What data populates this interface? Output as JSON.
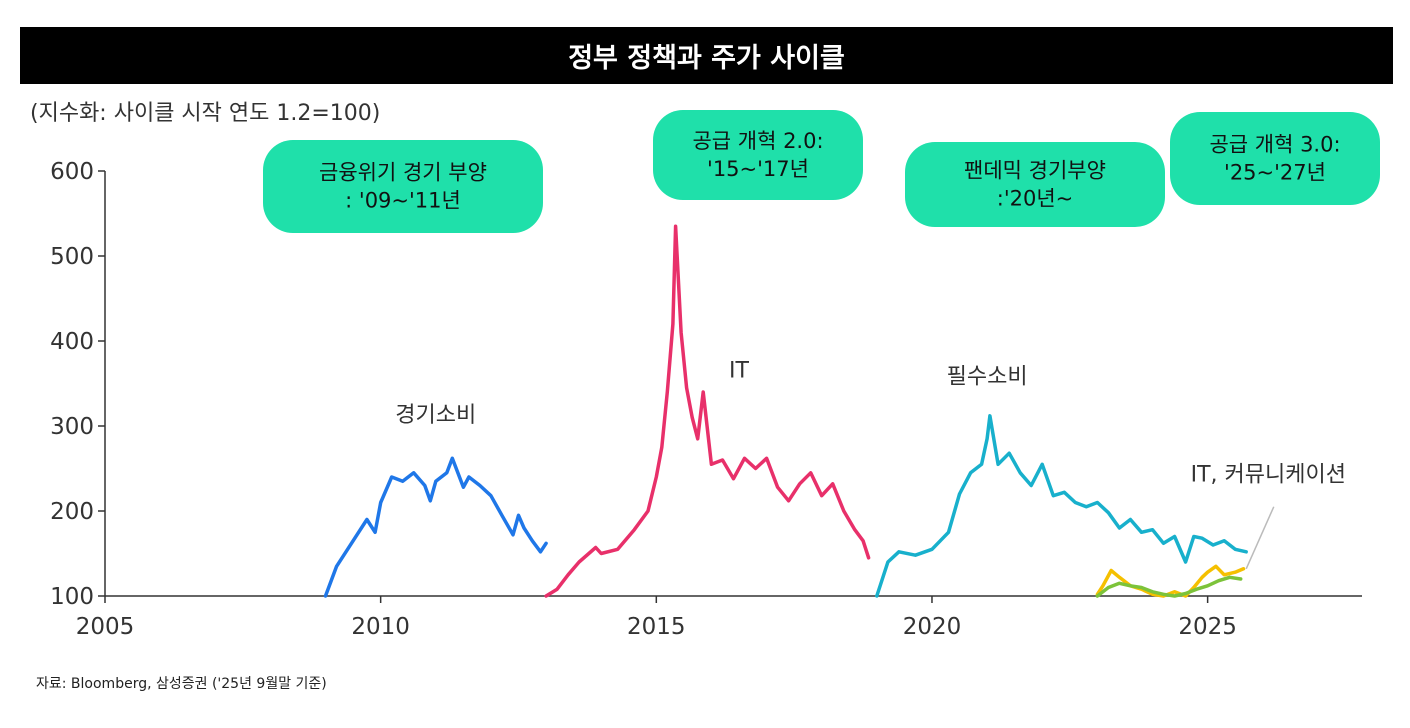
{
  "page": {
    "title": "정부 정책과 주가 사이클",
    "unit_note": "(지수화: 사이클 시작 연도 1.2=100)",
    "source_note": "자료: Bloomberg, 삼성증권 ('25년 9월말 기준)"
  },
  "colors": {
    "title_bg": "#000000",
    "box_fill": "#1fe0aa",
    "consumer_discretionary": "#1f77e8",
    "it_2015": "#e8306a",
    "staples": "#18b0cc",
    "it_2025": "#f5c000",
    "communication_2025": "#7cc33a",
    "axis": "#333333"
  },
  "annotations": [
    {
      "id": "gfc",
      "lines": [
        "금융위기 경기 부양",
        ": '09~'11년"
      ]
    },
    {
      "id": "supply2",
      "lines": [
        "공급 개혁 2.0:",
        "'15~'17년"
      ]
    },
    {
      "id": "pandemic",
      "lines": [
        "팬데믹 경기부양",
        ":'20년~"
      ]
    },
    {
      "id": "supply3",
      "lines": [
        "공급 개혁 3.0:",
        "'25~'27년"
      ]
    }
  ],
  "chart_data": {
    "type": "line",
    "title": "정부 정책과 주가 사이클",
    "xlabel": "",
    "ylabel": "",
    "xlim": [
      2005,
      2027.8
    ],
    "ylim": [
      100,
      600
    ],
    "x_ticks": [
      2005,
      2010,
      2015,
      2020,
      2025
    ],
    "y_ticks": [
      100,
      200,
      300,
      400,
      500,
      600
    ],
    "series": [
      {
        "name": "경기소비",
        "color_key": "consumer_discretionary",
        "points": [
          [
            2009.0,
            100
          ],
          [
            2009.2,
            135
          ],
          [
            2009.5,
            165
          ],
          [
            2009.75,
            190
          ],
          [
            2009.9,
            175
          ],
          [
            2010.0,
            210
          ],
          [
            2010.2,
            240
          ],
          [
            2010.4,
            235
          ],
          [
            2010.6,
            245
          ],
          [
            2010.8,
            230
          ],
          [
            2010.9,
            212
          ],
          [
            2011.0,
            235
          ],
          [
            2011.2,
            245
          ],
          [
            2011.3,
            262
          ],
          [
            2011.5,
            228
          ],
          [
            2011.6,
            240
          ],
          [
            2011.8,
            230
          ],
          [
            2012.0,
            218
          ],
          [
            2012.2,
            195
          ],
          [
            2012.4,
            172
          ],
          [
            2012.5,
            195
          ],
          [
            2012.6,
            180
          ],
          [
            2012.75,
            165
          ],
          [
            2012.9,
            152
          ],
          [
            2013.0,
            162
          ]
        ]
      },
      {
        "name": "IT",
        "color_key": "it_2015",
        "points": [
          [
            2013.0,
            100
          ],
          [
            2013.2,
            108
          ],
          [
            2013.4,
            125
          ],
          [
            2013.6,
            140
          ],
          [
            2013.9,
            157
          ],
          [
            2014.0,
            150
          ],
          [
            2014.3,
            155
          ],
          [
            2014.6,
            178
          ],
          [
            2014.85,
            200
          ],
          [
            2015.0,
            240
          ],
          [
            2015.1,
            275
          ],
          [
            2015.2,
            340
          ],
          [
            2015.3,
            420
          ],
          [
            2015.35,
            535
          ],
          [
            2015.45,
            410
          ],
          [
            2015.55,
            345
          ],
          [
            2015.65,
            310
          ],
          [
            2015.75,
            285
          ],
          [
            2015.85,
            340
          ],
          [
            2016.0,
            255
          ],
          [
            2016.2,
            260
          ],
          [
            2016.4,
            238
          ],
          [
            2016.6,
            262
          ],
          [
            2016.8,
            250
          ],
          [
            2017.0,
            262
          ],
          [
            2017.2,
            228
          ],
          [
            2017.4,
            212
          ],
          [
            2017.6,
            232
          ],
          [
            2017.8,
            245
          ],
          [
            2018.0,
            218
          ],
          [
            2018.2,
            232
          ],
          [
            2018.4,
            200
          ],
          [
            2018.6,
            178
          ],
          [
            2018.75,
            165
          ],
          [
            2018.85,
            145
          ]
        ]
      },
      {
        "name": "필수소비",
        "color_key": "staples",
        "points": [
          [
            2019.0,
            100
          ],
          [
            2019.2,
            140
          ],
          [
            2019.4,
            152
          ],
          [
            2019.7,
            148
          ],
          [
            2020.0,
            155
          ],
          [
            2020.3,
            175
          ],
          [
            2020.5,
            220
          ],
          [
            2020.7,
            245
          ],
          [
            2020.9,
            255
          ],
          [
            2021.0,
            285
          ],
          [
            2021.05,
            312
          ],
          [
            2021.2,
            255
          ],
          [
            2021.4,
            268
          ],
          [
            2021.6,
            245
          ],
          [
            2021.8,
            230
          ],
          [
            2022.0,
            255
          ],
          [
            2022.2,
            218
          ],
          [
            2022.4,
            222
          ],
          [
            2022.6,
            210
          ],
          [
            2022.8,
            205
          ],
          [
            2023.0,
            210
          ],
          [
            2023.2,
            198
          ],
          [
            2023.4,
            180
          ],
          [
            2023.6,
            190
          ],
          [
            2023.8,
            175
          ],
          [
            2024.0,
            178
          ],
          [
            2024.2,
            162
          ],
          [
            2024.4,
            170
          ],
          [
            2024.6,
            140
          ],
          [
            2024.75,
            170
          ],
          [
            2024.9,
            168
          ],
          [
            2025.1,
            160
          ],
          [
            2025.3,
            165
          ],
          [
            2025.5,
            155
          ],
          [
            2025.7,
            152
          ]
        ]
      },
      {
        "name": "IT",
        "color_key": "it_2025",
        "points": [
          [
            2023.0,
            102
          ],
          [
            2023.1,
            112
          ],
          [
            2023.25,
            130
          ],
          [
            2023.4,
            122
          ],
          [
            2023.6,
            112
          ],
          [
            2023.8,
            108
          ],
          [
            2024.0,
            102
          ],
          [
            2024.2,
            100
          ],
          [
            2024.4,
            105
          ],
          [
            2024.6,
            100
          ],
          [
            2024.75,
            110
          ],
          [
            2024.9,
            122
          ],
          [
            2025.0,
            128
          ],
          [
            2025.15,
            135
          ],
          [
            2025.3,
            125
          ],
          [
            2025.5,
            128
          ],
          [
            2025.65,
            132
          ]
        ]
      },
      {
        "name": "커뮤니케이션",
        "color_key": "communication_2025",
        "points": [
          [
            2023.0,
            100
          ],
          [
            2023.2,
            110
          ],
          [
            2023.4,
            115
          ],
          [
            2023.6,
            112
          ],
          [
            2023.8,
            110
          ],
          [
            2024.0,
            105
          ],
          [
            2024.2,
            102
          ],
          [
            2024.4,
            100
          ],
          [
            2024.6,
            103
          ],
          [
            2024.8,
            108
          ],
          [
            2025.0,
            112
          ],
          [
            2025.2,
            118
          ],
          [
            2025.4,
            122
          ],
          [
            2025.6,
            120
          ]
        ]
      }
    ],
    "series_labels": [
      {
        "text": "경기소비",
        "x": 2011.0,
        "y": 305
      },
      {
        "text": "IT",
        "x": 2016.5,
        "y": 357
      },
      {
        "text": "필수소비",
        "x": 2021.0,
        "y": 350
      },
      {
        "text": "IT, 커뮤니케이션",
        "x": 2026.1,
        "y": 235
      }
    ]
  }
}
